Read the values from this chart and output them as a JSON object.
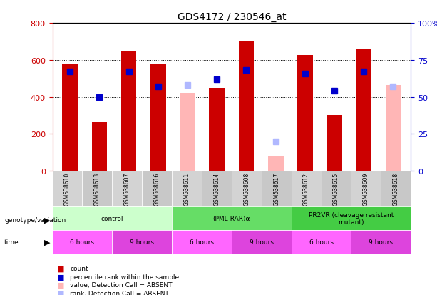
{
  "title": "GDS4172 / 230546_at",
  "samples": [
    "GSM538610",
    "GSM538613",
    "GSM538607",
    "GSM538616",
    "GSM538611",
    "GSM538614",
    "GSM538608",
    "GSM538617",
    "GSM538612",
    "GSM538615",
    "GSM538609",
    "GSM538618"
  ],
  "count_values": [
    580,
    265,
    648,
    578,
    null,
    450,
    705,
    null,
    625,
    300,
    660,
    null
  ],
  "rank_values": [
    67,
    50,
    67,
    57,
    null,
    62,
    68,
    null,
    66,
    54,
    67,
    null
  ],
  "absent_count": [
    null,
    null,
    null,
    null,
    420,
    null,
    null,
    80,
    null,
    null,
    null,
    465
  ],
  "absent_rank": [
    null,
    null,
    null,
    null,
    58,
    null,
    null,
    20,
    null,
    null,
    null,
    57
  ],
  "ylim_left": [
    0,
    800
  ],
  "ylim_right": [
    0,
    100
  ],
  "yticks_left": [
    0,
    200,
    400,
    600,
    800
  ],
  "yticks_right": [
    0,
    25,
    50,
    75,
    100
  ],
  "yticklabels_right": [
    "0",
    "25",
    "50",
    "75",
    "100%"
  ],
  "bar_width": 0.35,
  "count_color": "#cc0000",
  "rank_color": "#0000cc",
  "absent_count_color": "#ffb6b6",
  "absent_rank_color": "#b0b8ff",
  "groups": [
    {
      "label": "control",
      "start": 0,
      "end": 4,
      "color": "#ccffcc"
    },
    {
      "label": "(PML-RAR)α",
      "start": 4,
      "end": 8,
      "color": "#66dd66"
    },
    {
      "label": "PR2VR (cleavage resistant\nmutant)",
      "start": 8,
      "end": 12,
      "color": "#44cc44"
    }
  ],
  "time_groups": [
    {
      "label": "6 hours",
      "start": 0,
      "end": 2,
      "color": "#ff66ff"
    },
    {
      "label": "9 hours",
      "start": 2,
      "end": 4,
      "color": "#dd44dd"
    },
    {
      "label": "6 hours",
      "start": 4,
      "end": 6,
      "color": "#ff66ff"
    },
    {
      "label": "9 hours",
      "start": 6,
      "end": 8,
      "color": "#dd44dd"
    },
    {
      "label": "6 hours",
      "start": 8,
      "end": 10,
      "color": "#ff66ff"
    },
    {
      "label": "9 hours",
      "start": 10,
      "end": 12,
      "color": "#dd44dd"
    }
  ],
  "genotype_label": "genotype/variation",
  "time_label": "time",
  "legend_items": [
    {
      "label": "count",
      "color": "#cc0000",
      "marker": "s"
    },
    {
      "label": "percentile rank within the sample",
      "color": "#0000cc",
      "marker": "s"
    },
    {
      "label": "value, Detection Call = ABSENT",
      "color": "#ffb6b6",
      "marker": "s"
    },
    {
      "label": "rank, Detection Call = ABSENT",
      "color": "#b0b8ff",
      "marker": "s"
    }
  ],
  "bg_color": "#ffffff",
  "plot_bg_color": "#ffffff",
  "grid_color": "#000000",
  "tick_label_color_left": "#cc0000",
  "tick_label_color_right": "#0000cc"
}
